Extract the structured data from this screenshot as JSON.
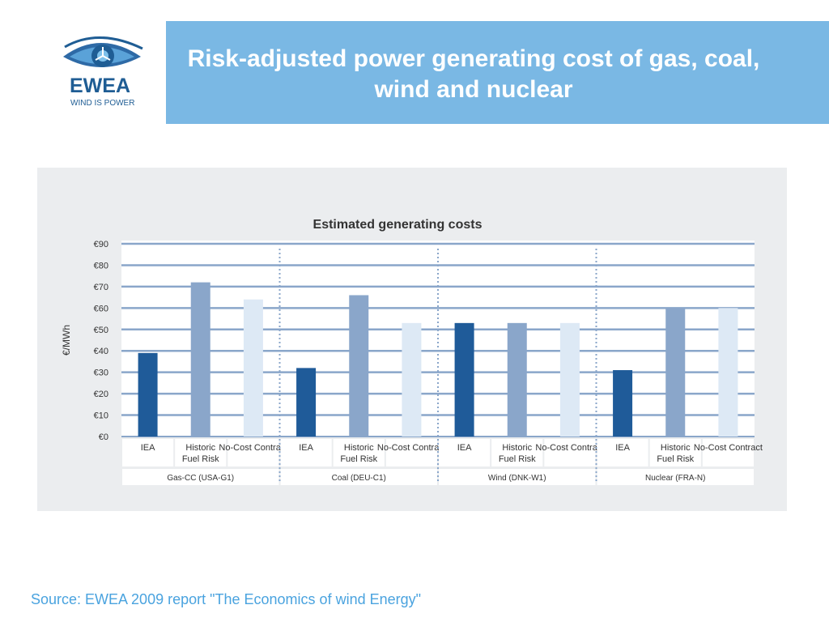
{
  "header": {
    "title": "Risk-adjusted power generating cost of gas, coal, wind and nuclear",
    "logo_text": "EWEA",
    "logo_tagline": "WIND IS POWER"
  },
  "footer": {
    "source": "Source: EWEA 2009 report \"The Economics of wind Energy\""
  },
  "colors": {
    "iea": "#1f5b99",
    "historic": "#8aa6ca",
    "nocost": "#dde9f5",
    "grid": "#8aa6ca",
    "title_bg": "#7ab8e4"
  },
  "chart_data": {
    "type": "bar",
    "title": "Estimated generating costs",
    "ylabel": "€/MWh",
    "ylim": [
      0,
      90
    ],
    "yticks": [
      "€0",
      "€10",
      "€20",
      "€30",
      "€40",
      "€50",
      "€60",
      "€70",
      "€80",
      "€90"
    ],
    "grid": true,
    "groups": [
      {
        "name": "Gas-CC (USA-G1)",
        "categories": [
          "IEA",
          "Historic Fuel Risk",
          "No-Cost Contract"
        ],
        "values": [
          39,
          72,
          64
        ]
      },
      {
        "name": "Coal (DEU-C1)",
        "categories": [
          "IEA",
          "Historic Fuel Risk",
          "No-Cost Contract"
        ],
        "values": [
          32,
          66,
          53
        ]
      },
      {
        "name": "Wind (DNK-W1)",
        "categories": [
          "IEA",
          "Historic Fuel Risk",
          "No-Cost Contract"
        ],
        "values": [
          53,
          53,
          53
        ]
      },
      {
        "name": "Nuclear (FRA-N)",
        "categories": [
          "IEA",
          "Historic Fuel Risk",
          "No-Cost Contract"
        ],
        "values": [
          31,
          60,
          60
        ]
      }
    ]
  }
}
